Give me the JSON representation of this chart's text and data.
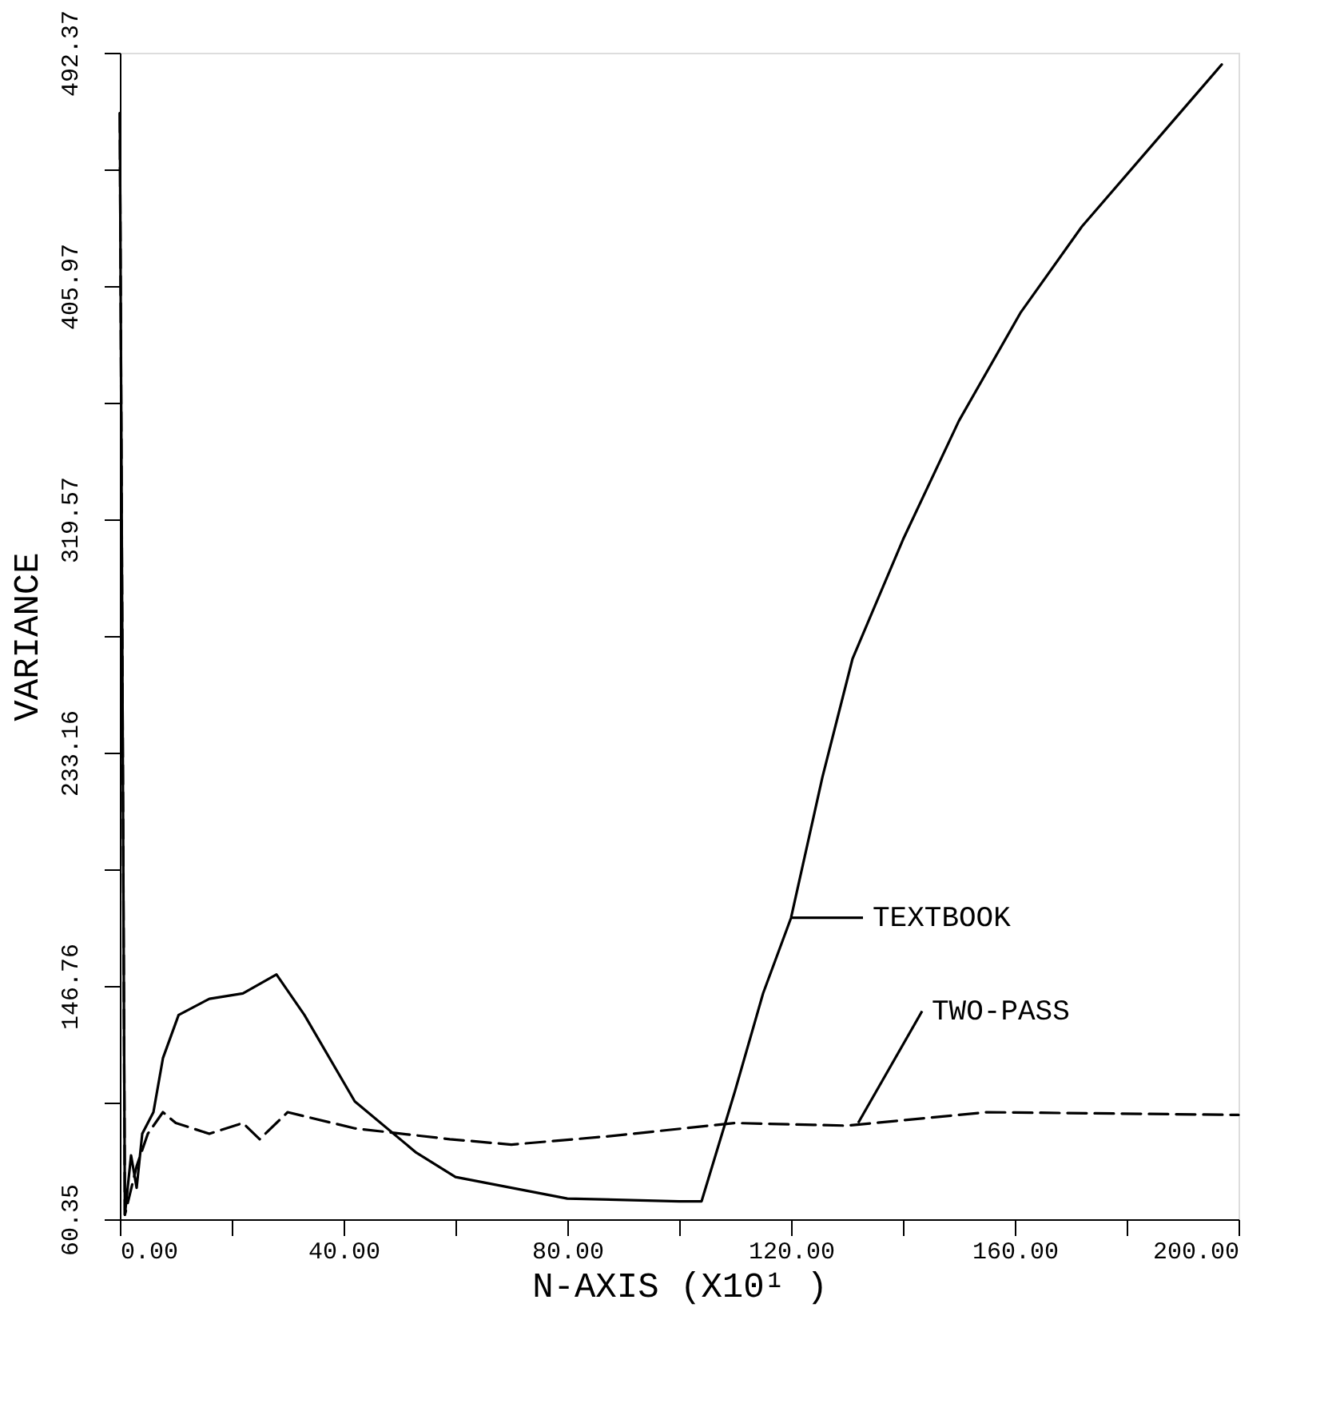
{
  "chart_data": {
    "type": "line",
    "xlabel": "N-AXIS (X10¹ )",
    "ylabel": "VARIANCE",
    "xlim": [
      0,
      200
    ],
    "ylim": [
      60.35,
      492.37
    ],
    "xticks": [
      {
        "value": 0,
        "label": "0.00"
      },
      {
        "value": 20,
        "label": null
      },
      {
        "value": 40,
        "label": "40.00"
      },
      {
        "value": 60,
        "label": null
      },
      {
        "value": 80,
        "label": "80.00"
      },
      {
        "value": 100,
        "label": null
      },
      {
        "value": 120,
        "label": "120.00"
      },
      {
        "value": 140,
        "label": null
      },
      {
        "value": 160,
        "label": "160.00"
      },
      {
        "value": 180,
        "label": null
      },
      {
        "value": 200,
        "label": "200.00"
      }
    ],
    "yticks": [
      60.35,
      {
        "value": 103.555,
        "label": null
      },
      146.76,
      {
        "value": 189.96,
        "label": null
      },
      233.16,
      {
        "value": 276.365,
        "label": null
      },
      319.57,
      {
        "value": 362.77,
        "label": null
      },
      405.97,
      {
        "value": 449.17,
        "label": null
      },
      492.37
    ],
    "grid": false,
    "marker": "none",
    "series": [
      {
        "color": "#000000",
        "line_style": "solid",
        "x": [
          0,
          0.9,
          2,
          3,
          4,
          6,
          7.7,
          10.5,
          16,
          22,
          28,
          33,
          42,
          53,
          60,
          80,
          100,
          104,
          110,
          115,
          120,
          125.6,
          131,
          140,
          150,
          161,
          172,
          187,
          197
        ],
        "values": [
          470,
          62,
          84,
          72,
          92,
          100,
          120,
          136,
          142,
          144,
          151,
          136,
          104,
          85,
          76,
          68,
          67,
          67,
          108,
          144,
          172,
          224,
          268,
          312,
          356,
          396,
          428,
          464,
          488
        ]
      },
      {
        "color": "#000000",
        "line_style": "dashed",
        "x": [
          0,
          0.9,
          3,
          5,
          7.7,
          10,
          16,
          22,
          25,
          30,
          42,
          59,
          70,
          87,
          110,
          130,
          155,
          200
        ],
        "values": [
          470,
          62,
          80,
          92,
          100,
          96,
          92,
          96,
          90,
          100,
          94,
          90,
          88,
          91,
          96,
          95,
          100,
          99
        ]
      }
    ],
    "annotations": [
      {
        "text": "TEXTBOOK",
        "x": 120,
        "y": 172
      },
      {
        "text": "TWO-PASS",
        "x": 132,
        "y": 96
      }
    ]
  }
}
